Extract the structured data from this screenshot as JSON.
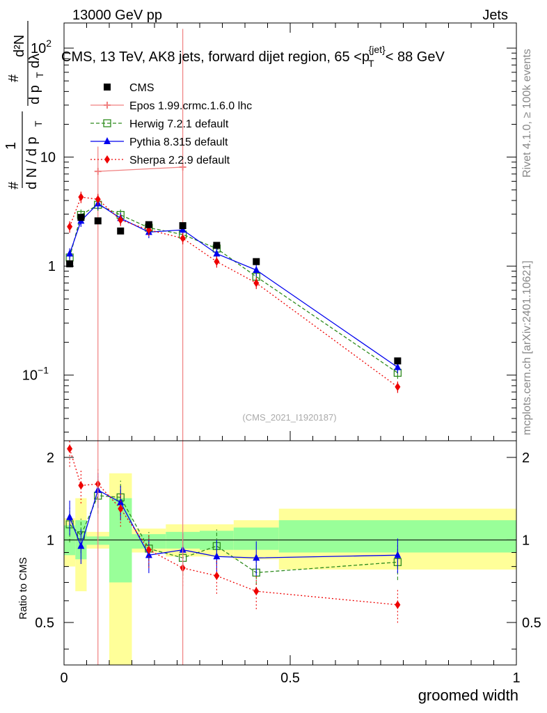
{
  "header": {
    "left": "13000 GeV pp",
    "right": "Jets",
    "side_top": "Rivet 4.1.0, ≥ 100k events",
    "side_bottom": "mcplots.cern.ch [arXiv:2401.10621]",
    "analysis_id": "(CMS_2021_I1920187)"
  },
  "chart_data": {
    "type": "line",
    "title": "CMS, 13 TeV, AK8 jets, forward dijet region, 65 <p_T^{jet}< 88 GeV",
    "title_parts": {
      "a": "CMS, 13 TeV, AK8 jets, forward dijet region, 65 <p",
      "sub": "T",
      "sup": "{jet}",
      "b": "< 88 GeV"
    },
    "xlabel": "groomed width",
    "ylabel_parts": {
      "hash": "#",
      "one": "1",
      "dn": "d N / d p",
      "t": "T",
      "dn2": "d²N",
      "dn2den": "d p",
      "lambda": " dλ"
    },
    "ratio_ylabel": "Ratio to CMS",
    "xlim": [
      0,
      1
    ],
    "ylim": [
      0.025,
      170
    ],
    "ratio_ylim": [
      0.35,
      2.3
    ],
    "x_ticks": [
      {
        "v": 0,
        "label": "0"
      },
      {
        "v": 0.5,
        "label": "0.5"
      },
      {
        "v": 1,
        "label": "1"
      }
    ],
    "y_ticks": [
      {
        "v": 0.1,
        "base": "10",
        "exp": "−1"
      },
      {
        "v": 1,
        "base": "1",
        "exp": ""
      },
      {
        "v": 10,
        "base": "10",
        "exp": ""
      },
      {
        "v": 100,
        "base": "10",
        "exp": "2"
      }
    ],
    "ratio_ticks": [
      {
        "v": 0.5,
        "label": "0.5"
      },
      {
        "v": 1,
        "label": "1"
      },
      {
        "v": 2,
        "label": "2"
      }
    ],
    "bins": [
      [
        0,
        0.025
      ],
      [
        0.025,
        0.05
      ],
      [
        0.05,
        0.1
      ],
      [
        0.1,
        0.15
      ],
      [
        0.15,
        0.225
      ],
      [
        0.225,
        0.3
      ],
      [
        0.3,
        0.375
      ],
      [
        0.375,
        0.475
      ],
      [
        0.475,
        1.0
      ]
    ],
    "band_inner": [
      [
        0.88,
        1.13
      ],
      [
        0.85,
        1.18
      ],
      [
        0.96,
        1.03
      ],
      [
        0.7,
        1.42
      ],
      [
        0.93,
        1.05
      ],
      [
        0.93,
        1.07
      ],
      [
        0.92,
        1.08
      ],
      [
        0.92,
        1.11
      ],
      [
        0.9,
        1.18
      ]
    ],
    "band_outer": [
      [
        0.8,
        1.2
      ],
      [
        0.65,
        1.42
      ],
      [
        0.93,
        1.07
      ],
      [
        0.35,
        1.75
      ],
      [
        0.9,
        1.1
      ],
      [
        0.87,
        1.14
      ],
      [
        0.87,
        1.14
      ],
      [
        0.85,
        1.18
      ],
      [
        0.78,
        1.3
      ]
    ],
    "data": {
      "name": "CMS",
      "x": [
        0.0125,
        0.0375,
        0.075,
        0.125,
        0.1875,
        0.2625,
        0.3375,
        0.425,
        0.7375
      ],
      "y": [
        1.05,
        2.8,
        2.6,
        2.1,
        2.4,
        2.35,
        1.55,
        1.1,
        0.135
      ]
    },
    "series": [
      {
        "name": "Epos 1.99.crmc.1.6.0 lhc",
        "color": "#f08080",
        "dash": "",
        "marker": "cross",
        "x": [
          0.075,
          0.2625
        ],
        "y": [
          7.4,
          8.1
        ],
        "ylo": [
          0.001,
          0.001
        ],
        "yhi": [
          12.5,
          150
        ]
      },
      {
        "name": "Herwig 7.2.1 default",
        "color": "#2e8b1e",
        "dash": "5,3",
        "marker": "square",
        "x": [
          0.0125,
          0.0375,
          0.075,
          0.125,
          0.1875,
          0.2625,
          0.3375,
          0.425,
          0.7375
        ],
        "y": [
          1.2,
          2.95,
          3.65,
          2.95,
          2.25,
          1.95,
          1.45,
          0.8,
          0.105
        ],
        "ratio": [
          1.14,
          1.04,
          1.45,
          1.43,
          0.93,
          0.86,
          0.95,
          0.76,
          0.83
        ]
      },
      {
        "name": "Pythia 8.315 default",
        "color": "#0000ee",
        "dash": "",
        "marker": "triangle",
        "x": [
          0.0125,
          0.0375,
          0.075,
          0.125,
          0.1875,
          0.2625,
          0.3375,
          0.425,
          0.7375
        ],
        "y": [
          1.3,
          2.6,
          3.75,
          2.75,
          2.05,
          2.15,
          1.3,
          0.92,
          0.118
        ],
        "ratio": [
          1.21,
          0.95,
          1.52,
          1.37,
          0.88,
          0.92,
          0.87,
          0.86,
          0.88
        ]
      },
      {
        "name": "Sherpa 2.2.9 default",
        "color": "#ee0000",
        "dash": "2,3",
        "marker": "diamond",
        "x": [
          0.0125,
          0.0375,
          0.075,
          0.125,
          0.1875,
          0.2625,
          0.3375,
          0.425,
          0.7375
        ],
        "y": [
          2.3,
          4.3,
          4.1,
          2.65,
          2.15,
          1.8,
          1.1,
          0.7,
          0.078
        ],
        "ratio": [
          2.15,
          1.58,
          1.6,
          1.3,
          0.92,
          0.79,
          0.74,
          0.65,
          0.58
        ]
      }
    ]
  }
}
